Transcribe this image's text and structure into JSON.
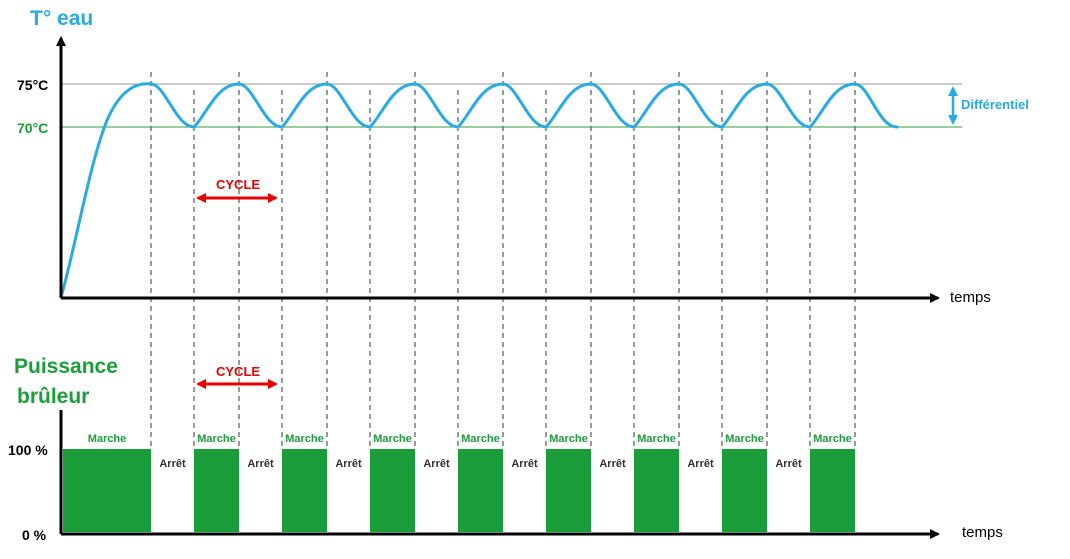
{
  "top": {
    "title": "T° eau",
    "y_high": "75°C",
    "y_low": "70°C",
    "x_axis": "temps",
    "differential": "Différentiel",
    "cycle": "CYCLE"
  },
  "bottom": {
    "title_line1": "Puissance",
    "title_line2": "brûleur",
    "y_high": "100 %",
    "y_low": "0 %",
    "x_axis": "temps",
    "cycle": "CYCLE",
    "on_label": "Marche",
    "off_label": "Arrêt",
    "on_count": 9,
    "off_count": 8
  },
  "colors": {
    "curve": "#29abe2",
    "low_line": "#2e9e3e",
    "high_line": "#999999",
    "blocks": "#1b9e3a",
    "cycle_arrow": "#e60000",
    "title_top": "#29abe2",
    "title_bottom": "#1b9e3a",
    "axis": "#000000"
  }
}
